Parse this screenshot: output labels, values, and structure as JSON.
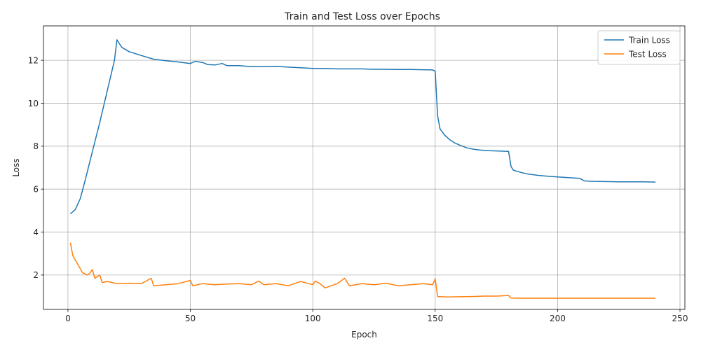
{
  "chart_data": {
    "type": "line",
    "title": "Train and Test Loss over Epochs",
    "xlabel": "Epoch",
    "ylabel": "Loss",
    "xlim": [
      -10,
      252
    ],
    "ylim": [
      0.4,
      13.6
    ],
    "xticks": [
      0,
      50,
      100,
      150,
      200,
      250
    ],
    "yticks": [
      2,
      4,
      6,
      8,
      10,
      12
    ],
    "grid": true,
    "legend_position": "top-right",
    "series": [
      {
        "name": "Train Loss",
        "color": "#1f77b4",
        "points": [
          [
            1,
            4.85
          ],
          [
            3,
            5.05
          ],
          [
            5,
            5.55
          ],
          [
            7,
            6.4
          ],
          [
            10,
            7.75
          ],
          [
            13,
            9.1
          ],
          [
            16,
            10.55
          ],
          [
            19,
            12.0
          ],
          [
            20,
            12.95
          ],
          [
            22,
            12.6
          ],
          [
            25,
            12.4
          ],
          [
            30,
            12.22
          ],
          [
            35,
            12.05
          ],
          [
            40,
            11.98
          ],
          [
            45,
            11.92
          ],
          [
            50,
            11.85
          ],
          [
            52,
            11.95
          ],
          [
            55,
            11.9
          ],
          [
            57,
            11.8
          ],
          [
            60,
            11.78
          ],
          [
            63,
            11.85
          ],
          [
            65,
            11.75
          ],
          [
            70,
            11.75
          ],
          [
            75,
            11.7
          ],
          [
            80,
            11.7
          ],
          [
            85,
            11.72
          ],
          [
            90,
            11.68
          ],
          [
            95,
            11.65
          ],
          [
            100,
            11.62
          ],
          [
            105,
            11.62
          ],
          [
            110,
            11.6
          ],
          [
            115,
            11.6
          ],
          [
            120,
            11.6
          ],
          [
            125,
            11.58
          ],
          [
            130,
            11.58
          ],
          [
            135,
            11.57
          ],
          [
            140,
            11.57
          ],
          [
            145,
            11.56
          ],
          [
            149,
            11.55
          ],
          [
            150,
            11.5
          ],
          [
            151,
            9.4
          ],
          [
            152,
            8.8
          ],
          [
            154,
            8.5
          ],
          [
            156,
            8.3
          ],
          [
            158,
            8.15
          ],
          [
            160,
            8.05
          ],
          [
            163,
            7.92
          ],
          [
            166,
            7.85
          ],
          [
            170,
            7.8
          ],
          [
            175,
            7.78
          ],
          [
            180,
            7.76
          ],
          [
            181,
            7.05
          ],
          [
            182,
            6.88
          ],
          [
            185,
            6.78
          ],
          [
            188,
            6.7
          ],
          [
            192,
            6.64
          ],
          [
            196,
            6.6
          ],
          [
            200,
            6.57
          ],
          [
            205,
            6.53
          ],
          [
            209,
            6.5
          ],
          [
            211,
            6.38
          ],
          [
            215,
            6.36
          ],
          [
            220,
            6.35
          ],
          [
            225,
            6.34
          ],
          [
            230,
            6.34
          ],
          [
            235,
            6.34
          ],
          [
            240,
            6.33
          ]
        ]
      },
      {
        "name": "Test Loss",
        "color": "#ff7f0e",
        "points": [
          [
            1,
            3.5
          ],
          [
            2,
            2.9
          ],
          [
            4,
            2.5
          ],
          [
            6,
            2.1
          ],
          [
            8,
            2.0
          ],
          [
            9,
            2.1
          ],
          [
            10,
            2.25
          ],
          [
            11,
            1.85
          ],
          [
            13,
            2.0
          ],
          [
            14,
            1.65
          ],
          [
            16,
            1.7
          ],
          [
            18,
            1.65
          ],
          [
            20,
            1.6
          ],
          [
            25,
            1.62
          ],
          [
            30,
            1.6
          ],
          [
            34,
            1.85
          ],
          [
            35,
            1.5
          ],
          [
            40,
            1.55
          ],
          [
            45,
            1.6
          ],
          [
            50,
            1.75
          ],
          [
            51,
            1.5
          ],
          [
            55,
            1.6
          ],
          [
            60,
            1.55
          ],
          [
            65,
            1.58
          ],
          [
            70,
            1.6
          ],
          [
            75,
            1.55
          ],
          [
            78,
            1.72
          ],
          [
            80,
            1.55
          ],
          [
            85,
            1.6
          ],
          [
            90,
            1.5
          ],
          [
            95,
            1.7
          ],
          [
            100,
            1.55
          ],
          [
            101,
            1.72
          ],
          [
            103,
            1.6
          ],
          [
            105,
            1.4
          ],
          [
            110,
            1.6
          ],
          [
            113,
            1.85
          ],
          [
            115,
            1.5
          ],
          [
            120,
            1.6
          ],
          [
            125,
            1.55
          ],
          [
            130,
            1.62
          ],
          [
            135,
            1.5
          ],
          [
            140,
            1.55
          ],
          [
            145,
            1.6
          ],
          [
            149,
            1.55
          ],
          [
            150,
            1.82
          ],
          [
            151,
            1.0
          ],
          [
            155,
            0.98
          ],
          [
            160,
            0.99
          ],
          [
            165,
            1.0
          ],
          [
            170,
            1.02
          ],
          [
            175,
            1.02
          ],
          [
            180,
            1.05
          ],
          [
            181,
            0.93
          ],
          [
            185,
            0.92
          ],
          [
            190,
            0.92
          ],
          [
            200,
            0.92
          ],
          [
            210,
            0.92
          ],
          [
            220,
            0.92
          ],
          [
            230,
            0.92
          ],
          [
            240,
            0.92
          ]
        ]
      }
    ]
  }
}
